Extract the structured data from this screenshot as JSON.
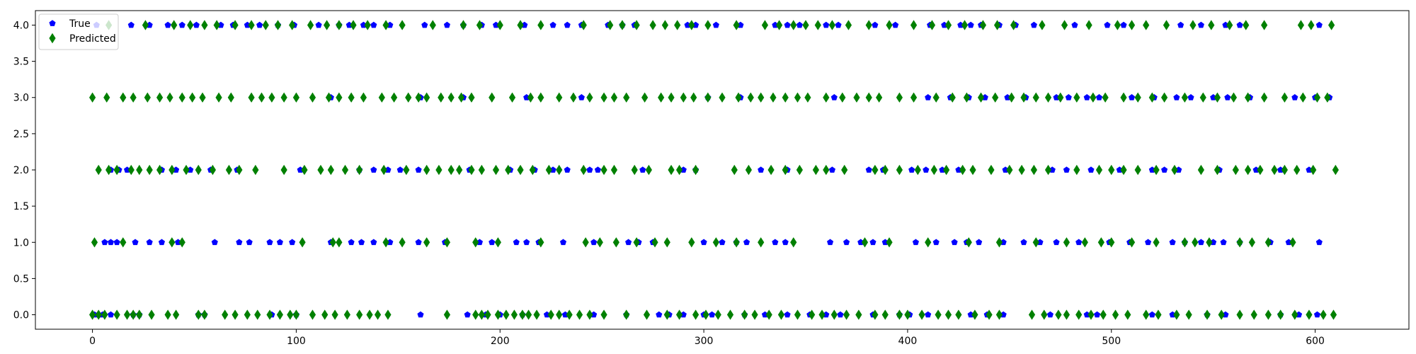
{
  "chart_data": {
    "type": "scatter",
    "title": "",
    "xlabel": "",
    "ylabel": "",
    "xlim": [
      -28,
      646
    ],
    "ylim": [
      -0.2,
      4.2
    ],
    "xticks": [
      0,
      100,
      200,
      300,
      400,
      500,
      600
    ],
    "xtick_labels": [
      "0",
      "100",
      "200",
      "300",
      "400",
      "500",
      "600"
    ],
    "yticks": [
      0.0,
      0.5,
      1.0,
      1.5,
      2.0,
      2.5,
      3.0,
      3.5,
      4.0
    ],
    "ytick_labels": [
      "0.0",
      "0.5",
      "1.0",
      "1.5",
      "2.0",
      "2.5",
      "3.0",
      "3.5",
      "4.0"
    ],
    "grid": false,
    "legend": {
      "placement": "top-left"
    },
    "series": [
      {
        "name": "True",
        "marker": "pentagon",
        "color": "#0000ff",
        "points": {
          "0": [
            1,
            3,
            5,
            9,
            20,
            23,
            52,
            55,
            88,
            100,
            161,
            184,
            193,
            200,
            211,
            223,
            232,
            246,
            262,
            278,
            283,
            290,
            300,
            304,
            320,
            330,
            341,
            352,
            360,
            367,
            383,
            396,
            401,
            410,
            431,
            439,
            447,
            470,
            488,
            493,
            520,
            530,
            547,
            556,
            583,
            592,
            601
          ],
          "1": [
            6,
            9,
            12,
            21,
            28,
            34,
            42,
            60,
            72,
            77,
            87,
            92,
            98,
            117,
            127,
            132,
            138,
            146,
            160,
            173,
            190,
            196,
            208,
            213,
            219,
            231,
            246,
            263,
            268,
            275,
            300,
            309,
            316,
            321,
            335,
            340,
            362,
            370,
            377,
            383,
            389,
            404,
            414,
            423,
            429,
            435,
            447,
            457,
            465,
            473,
            484,
            499,
            509,
            518,
            530,
            536,
            544,
            550,
            555,
            563,
            578,
            587,
            602
          ],
          "2": [
            9,
            13,
            17,
            34,
            41,
            48,
            58,
            71,
            102,
            131,
            138,
            145,
            151,
            160,
            185,
            205,
            217,
            226,
            233,
            244,
            248,
            270,
            290,
            296,
            328,
            341,
            363,
            381,
            388,
            402,
            409,
            417,
            425,
            448,
            471,
            478,
            490,
            504,
            520,
            526,
            533,
            553,
            571,
            583,
            597
          ],
          "3": [
            117,
            161,
            182,
            213,
            240,
            302,
            318,
            364,
            410,
            421,
            430,
            438,
            449,
            458,
            473,
            479,
            488,
            494,
            510,
            521,
            532,
            539,
            550,
            557,
            568,
            590,
            600,
            607
          ],
          "4": [
            2,
            19,
            28,
            37,
            44,
            51,
            63,
            69,
            76,
            82,
            91,
            99,
            111,
            121,
            126,
            133,
            138,
            146,
            163,
            174,
            182,
            191,
            198,
            212,
            226,
            233,
            240,
            253,
            260,
            266,
            292,
            296,
            306,
            318,
            335,
            341,
            347,
            360,
            366,
            384,
            394,
            411,
            418,
            426,
            431,
            436,
            445,
            453,
            462,
            482,
            498,
            506,
            534,
            544,
            556,
            563,
            602
          ]
        }
      },
      {
        "name": "Predicted",
        "marker": "thin_diamond",
        "color": "#008000",
        "points": {
          "0": [
            0,
            3,
            6,
            12,
            17,
            20,
            23,
            29,
            37,
            41,
            52,
            55,
            65,
            70,
            76,
            81,
            87,
            92,
            97,
            100,
            108,
            114,
            119,
            125,
            131,
            136,
            140,
            145,
            174,
            188,
            191,
            194,
            199,
            203,
            207,
            211,
            214,
            218,
            225,
            229,
            234,
            239,
            244,
            251,
            262,
            272,
            282,
            288,
            296,
            301,
            307,
            313,
            320,
            325,
            332,
            338,
            346,
            353,
            358,
            364,
            370,
            376,
            384,
            389,
            396,
            400,
            407,
            415,
            420,
            425,
            433,
            440,
            445,
            461,
            467,
            474,
            478,
            484,
            490,
            496,
            502,
            508,
            517,
            523,
            532,
            538,
            547,
            554,
            563,
            570,
            577,
            583,
            590,
            597,
            604,
            609
          ],
          "1": [
            1,
            15,
            39,
            44,
            103,
            118,
            121,
            144,
            152,
            164,
            174,
            188,
            199,
            220,
            242,
            249,
            257,
            267,
            276,
            282,
            294,
            306,
            316,
            328,
            344,
            379,
            391,
            410,
            430,
            445,
            463,
            478,
            487,
            495,
            500,
            510,
            522,
            536,
            541,
            548,
            563,
            569,
            577,
            589
          ],
          "2": [
            3,
            8,
            12,
            19,
            23,
            28,
            33,
            39,
            46,
            52,
            59,
            67,
            72,
            80,
            94,
            104,
            112,
            117,
            124,
            131,
            143,
            154,
            164,
            170,
            176,
            180,
            186,
            191,
            198,
            204,
            210,
            216,
            224,
            229,
            241,
            251,
            256,
            266,
            273,
            284,
            288,
            296,
            315,
            322,
            333,
            340,
            347,
            355,
            360,
            369,
            384,
            389,
            396,
            405,
            413,
            419,
            427,
            432,
            441,
            450,
            456,
            462,
            469,
            483,
            494,
            500,
            506,
            513,
            522,
            531,
            544,
            552,
            561,
            567,
            573,
            580,
            585,
            591,
            599,
            610
          ],
          "3": [
            0,
            7,
            15,
            20,
            27,
            33,
            38,
            44,
            49,
            54,
            62,
            68,
            78,
            83,
            88,
            94,
            100,
            108,
            116,
            121,
            127,
            133,
            142,
            148,
            155,
            160,
            164,
            171,
            176,
            181,
            186,
            196,
            206,
            215,
            220,
            229,
            236,
            244,
            251,
            256,
            262,
            271,
            279,
            284,
            290,
            295,
            302,
            309,
            317,
            323,
            328,
            334,
            340,
            346,
            351,
            360,
            368,
            375,
            381,
            386,
            396,
            403,
            414,
            422,
            429,
            436,
            443,
            451,
            457,
            463,
            469,
            475,
            483,
            491,
            497,
            506,
            513,
            520,
            526,
            536,
            545,
            552,
            560,
            567,
            575,
            585,
            594,
            601,
            606
          ],
          "4": [
            8,
            26,
            40,
            48,
            55,
            61,
            70,
            78,
            85,
            91,
            98,
            107,
            115,
            121,
            128,
            135,
            144,
            152,
            167,
            182,
            190,
            200,
            210,
            220,
            241,
            254,
            260,
            267,
            275,
            281,
            287,
            294,
            302,
            316,
            330,
            337,
            344,
            350,
            356,
            363,
            371,
            381,
            391,
            403,
            412,
            420,
            428,
            437,
            444,
            452,
            466,
            477,
            489,
            503,
            510,
            517,
            527,
            540,
            549,
            558,
            566,
            575,
            593,
            598,
            608
          ]
        }
      }
    ]
  }
}
